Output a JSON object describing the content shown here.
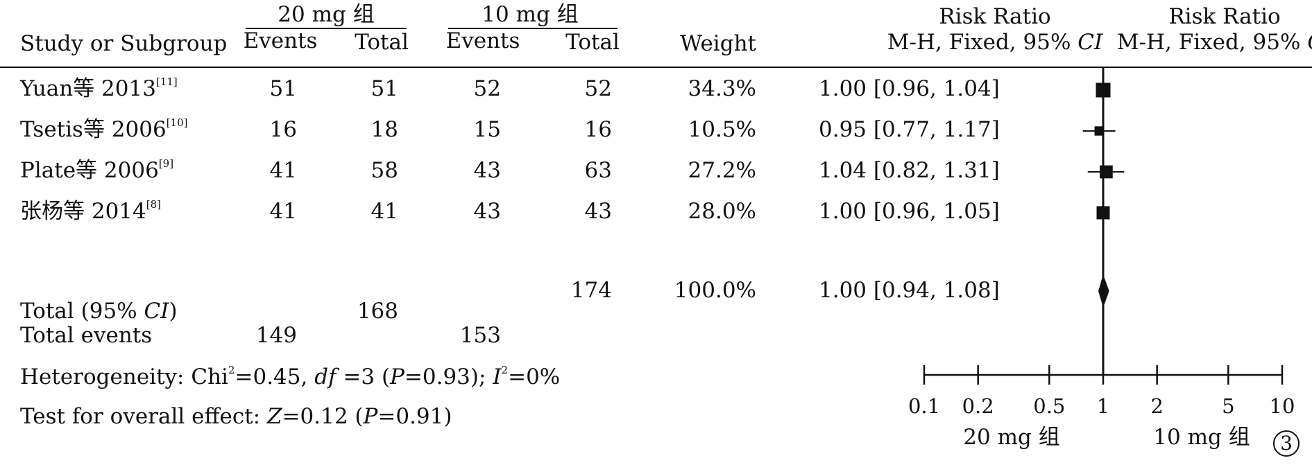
{
  "header": {
    "group1": "20 mg 组",
    "group2": "10 mg 组",
    "col_study": "Study or Subgroup",
    "col_events": "Events",
    "col_total": "Total",
    "col_weight": "Weight",
    "rr_title": "Risk Ratio",
    "rr_method_prefix": "M-H, Fixed, 95% ",
    "rr_method_ci": "CI"
  },
  "studies": [
    {
      "name": "Yuan等 2013",
      "ref": "[11]",
      "e1": "51",
      "t1": "51",
      "e2": "52",
      "t2": "52",
      "weight": "34.3%",
      "ci": "1.00 [0.96, 1.04]"
    },
    {
      "name": "Tsetis等 2006",
      "ref": "[10]",
      "e1": "16",
      "t1": "18",
      "e2": "15",
      "t2": "16",
      "weight": "10.5%",
      "ci": "0.95 [0.77, 1.17]"
    },
    {
      "name": "Plate等 2006",
      "ref": "[9]",
      "e1": "41",
      "t1": "58",
      "e2": "43",
      "t2": "63",
      "weight": "27.2%",
      "ci": "1.04 [0.82, 1.31]"
    },
    {
      "name": "张杨等 2014",
      "ref": "[8]",
      "e1": "41",
      "t1": "41",
      "e2": "43",
      "t2": "43",
      "weight": "28.0%",
      "ci": "1.00 [0.96, 1.05]"
    }
  ],
  "total": {
    "label_prefix": "Total (95% ",
    "label_ci": "CI",
    "label_suffix": ")",
    "t1": "168",
    "t2": "174",
    "weight": "100.0%",
    "ci": "1.00 [0.94, 1.08]",
    "events_label": "Total events",
    "e1": "149",
    "e2": "153"
  },
  "stats": {
    "heterogeneity": {
      "a": "Heterogeneity: Chi",
      "a_sup": "2",
      "b": "=0.45, ",
      "df": "df",
      "c": " =3 (",
      "p": "P",
      "d": "=0.93); ",
      "i": "I",
      "i_sup": "2",
      "e": "=0%"
    },
    "overall": {
      "a": "Test for overall effect: ",
      "z": "Z",
      "b": "=0.12 (",
      "p": "P",
      "c": "=0.91)"
    }
  },
  "figure_number": "3",
  "chart_data": {
    "type": "scatter",
    "subtype": "forest-plot",
    "title": "Risk Ratio",
    "xlabel": "M-H, Fixed, 95% CI",
    "x_scale": "log",
    "xlim": [
      0.1,
      10
    ],
    "x_ticks": [
      0.1,
      0.2,
      0.5,
      1,
      2,
      5,
      10
    ],
    "x_tick_labels": [
      "0.1",
      "0.2",
      "0.5",
      "1",
      "2",
      "5",
      "10"
    ],
    "favours_left": "20 mg 组",
    "favours_right": "10 mg 组",
    "reference_line": 1,
    "series": [
      {
        "label": "Yuan等 2013",
        "rr": 1.0,
        "lower": 0.96,
        "upper": 1.04,
        "weight": 34.3
      },
      {
        "label": "Tsetis等 2006",
        "rr": 0.95,
        "lower": 0.77,
        "upper": 1.17,
        "weight": 10.5
      },
      {
        "label": "Plate等 2006",
        "rr": 1.04,
        "lower": 0.82,
        "upper": 1.31,
        "weight": 27.2
      },
      {
        "label": "张杨等 2014",
        "rr": 1.0,
        "lower": 0.96,
        "upper": 1.05,
        "weight": 28.0
      }
    ],
    "pooled": {
      "label": "Total (95% CI)",
      "rr": 1.0,
      "lower": 0.94,
      "upper": 1.08,
      "weight": 100.0
    }
  }
}
